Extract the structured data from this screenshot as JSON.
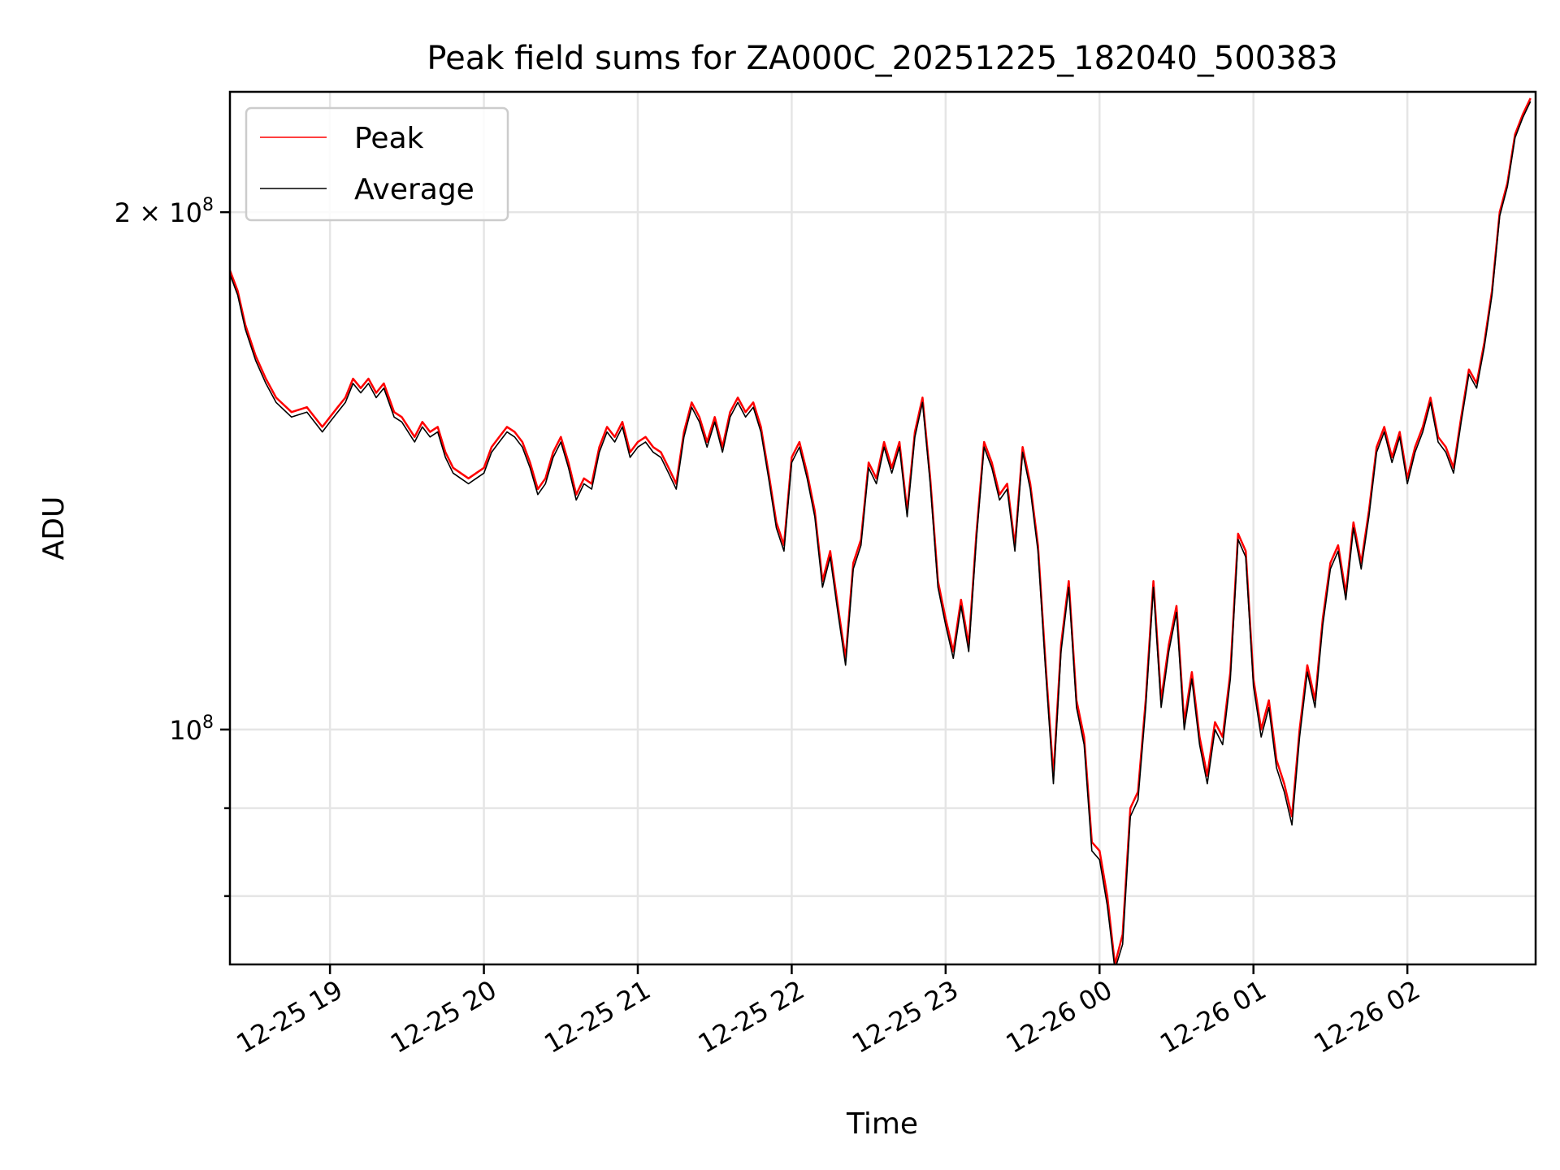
{
  "chart_data": {
    "type": "line",
    "title": "Peak field sums for ZA000C_20251225_182040_500383",
    "xlabel": "Time",
    "ylabel": "ADU",
    "yscale": "log",
    "grid": true,
    "legend_position": "top-left",
    "xlim": [
      "2025-12-25 18:21",
      "2025-12-26 02:50"
    ],
    "ylim": [
      73000000,
      235000000
    ],
    "x_ticks": [
      {
        "value": "2025-12-25 19:00",
        "label": "12-25 19"
      },
      {
        "value": "2025-12-25 20:00",
        "label": "12-25 20"
      },
      {
        "value": "2025-12-25 21:00",
        "label": "12-25 21"
      },
      {
        "value": "2025-12-25 22:00",
        "label": "12-25 22"
      },
      {
        "value": "2025-12-25 23:00",
        "label": "12-25 23"
      },
      {
        "value": "2025-12-26 00:00",
        "label": "12-26 00"
      },
      {
        "value": "2025-12-26 01:00",
        "label": "12-26 01"
      },
      {
        "value": "2025-12-26 02:00",
        "label": "12-26 02"
      }
    ],
    "y_major_ticks": [
      {
        "value": 100000000,
        "base": "10",
        "exp": "8"
      },
      {
        "value": 200000000,
        "mantissa": "2",
        "base": "10",
        "exp": "8"
      }
    ],
    "y_minor_ticks": [
      80000000,
      90000000
    ],
    "series": [
      {
        "name": "Peak",
        "color": "#ff0000",
        "x": [
          "2025-12-25 18:21",
          "2025-12-25 18:24",
          "2025-12-25 18:27",
          "2025-12-25 18:31",
          "2025-12-25 18:35",
          "2025-12-25 18:39",
          "2025-12-25 18:45",
          "2025-12-25 18:51",
          "2025-12-25 18:57",
          "2025-12-25 19:00",
          "2025-12-25 19:03",
          "2025-12-25 19:06",
          "2025-12-25 19:09",
          "2025-12-25 19:12",
          "2025-12-25 19:15",
          "2025-12-25 19:18",
          "2025-12-25 19:21",
          "2025-12-25 19:25",
          "2025-12-25 19:28",
          "2025-12-25 19:33",
          "2025-12-25 19:36",
          "2025-12-25 19:39",
          "2025-12-25 19:42",
          "2025-12-25 19:45",
          "2025-12-25 19:48",
          "2025-12-25 19:51",
          "2025-12-25 19:54",
          "2025-12-25 19:57",
          "2025-12-25 20:00",
          "2025-12-25 20:03",
          "2025-12-25 20:06",
          "2025-12-25 20:09",
          "2025-12-25 20:12",
          "2025-12-25 20:15",
          "2025-12-25 20:18",
          "2025-12-25 20:21",
          "2025-12-25 20:24",
          "2025-12-25 20:27",
          "2025-12-25 20:30",
          "2025-12-25 20:33",
          "2025-12-25 20:36",
          "2025-12-25 20:39",
          "2025-12-25 20:42",
          "2025-12-25 20:45",
          "2025-12-25 20:48",
          "2025-12-25 20:51",
          "2025-12-25 20:54",
          "2025-12-25 20:57",
          "2025-12-25 21:00",
          "2025-12-25 21:03",
          "2025-12-25 21:06",
          "2025-12-25 21:09",
          "2025-12-25 21:12",
          "2025-12-25 21:15",
          "2025-12-25 21:18",
          "2025-12-25 21:21",
          "2025-12-25 21:24",
          "2025-12-25 21:27",
          "2025-12-25 21:30",
          "2025-12-25 21:33",
          "2025-12-25 21:36",
          "2025-12-25 21:39",
          "2025-12-25 21:42",
          "2025-12-25 21:45",
          "2025-12-25 21:48",
          "2025-12-25 21:51",
          "2025-12-25 21:54",
          "2025-12-25 21:57",
          "2025-12-25 22:00",
          "2025-12-25 22:03",
          "2025-12-25 22:06",
          "2025-12-25 22:09",
          "2025-12-25 22:12",
          "2025-12-25 22:15",
          "2025-12-25 22:18",
          "2025-12-25 22:21",
          "2025-12-25 22:24",
          "2025-12-25 22:27",
          "2025-12-25 22:30",
          "2025-12-25 22:33",
          "2025-12-25 22:36",
          "2025-12-25 22:39",
          "2025-12-25 22:42",
          "2025-12-25 22:45",
          "2025-12-25 22:48",
          "2025-12-25 22:51",
          "2025-12-25 22:54",
          "2025-12-25 22:57",
          "2025-12-25 23:00",
          "2025-12-25 23:03",
          "2025-12-25 23:06",
          "2025-12-25 23:09",
          "2025-12-25 23:12",
          "2025-12-25 23:15",
          "2025-12-25 23:18",
          "2025-12-25 23:21",
          "2025-12-25 23:24",
          "2025-12-25 23:27",
          "2025-12-25 23:30",
          "2025-12-25 23:33",
          "2025-12-25 23:36",
          "2025-12-25 23:39",
          "2025-12-25 23:42",
          "2025-12-25 23:45",
          "2025-12-25 23:48",
          "2025-12-25 23:51",
          "2025-12-25 23:54",
          "2025-12-25 23:57",
          "2025-12-26 00:00",
          "2025-12-26 00:03",
          "2025-12-26 00:06",
          "2025-12-26 00:09",
          "2025-12-26 00:12",
          "2025-12-26 00:15",
          "2025-12-26 00:18",
          "2025-12-26 00:21",
          "2025-12-26 00:24",
          "2025-12-26 00:27",
          "2025-12-26 00:30",
          "2025-12-26 00:33",
          "2025-12-26 00:36",
          "2025-12-26 00:39",
          "2025-12-26 00:42",
          "2025-12-26 00:45",
          "2025-12-26 00:48",
          "2025-12-26 00:51",
          "2025-12-26 00:54",
          "2025-12-26 00:57",
          "2025-12-26 01:00",
          "2025-12-26 01:03",
          "2025-12-26 01:06",
          "2025-12-26 01:09",
          "2025-12-26 01:12",
          "2025-12-26 01:15",
          "2025-12-26 01:18",
          "2025-12-26 01:21",
          "2025-12-26 01:24",
          "2025-12-26 01:27",
          "2025-12-26 01:30",
          "2025-12-26 01:33",
          "2025-12-26 01:36",
          "2025-12-26 01:39",
          "2025-12-26 01:42",
          "2025-12-26 01:45",
          "2025-12-26 01:48",
          "2025-12-26 01:51",
          "2025-12-26 01:54",
          "2025-12-26 01:57",
          "2025-12-26 02:00",
          "2025-12-26 02:03",
          "2025-12-26 02:06",
          "2025-12-26 02:09",
          "2025-12-26 02:12",
          "2025-12-26 02:15",
          "2025-12-26 02:18",
          "2025-12-26 02:21",
          "2025-12-26 02:24",
          "2025-12-26 02:27",
          "2025-12-26 02:30",
          "2025-12-26 02:33",
          "2025-12-26 02:36",
          "2025-12-26 02:39",
          "2025-12-26 02:42",
          "2025-12-26 02:45",
          "2025-12-26 02:48"
        ],
        "y": [
          185000000,
          180000000,
          172000000,
          165000000,
          160000000,
          156000000,
          153000000,
          154000000,
          150000000,
          152000000,
          154000000,
          156000000,
          160000000,
          158000000,
          160000000,
          157000000,
          159000000,
          153000000,
          152000000,
          148000000,
          151000000,
          149000000,
          150000000,
          145000000,
          142000000,
          141000000,
          140000000,
          141000000,
          142000000,
          146000000,
          148000000,
          150000000,
          149000000,
          147000000,
          143000000,
          138000000,
          140000000,
          145000000,
          148000000,
          143000000,
          137000000,
          140000000,
          139000000,
          146000000,
          150000000,
          148000000,
          151000000,
          145000000,
          147000000,
          148000000,
          146000000,
          145000000,
          142000000,
          139000000,
          149000000,
          155000000,
          152000000,
          147000000,
          152000000,
          146000000,
          153000000,
          156000000,
          153000000,
          155000000,
          150000000,
          141000000,
          132000000,
          128000000,
          144000000,
          147000000,
          141000000,
          134000000,
          122000000,
          127000000,
          118000000,
          110000000,
          125000000,
          129000000,
          143000000,
          140000000,
          147000000,
          142000000,
          147000000,
          134000000,
          149000000,
          156000000,
          140000000,
          122000000,
          116000000,
          111000000,
          119000000,
          112000000,
          130000000,
          147000000,
          143000000,
          137000000,
          139000000,
          128000000,
          146000000,
          139000000,
          128000000,
          109000000,
          94000000,
          112000000,
          122000000,
          104000000,
          99000000,
          86000000,
          85000000,
          80000000,
          73000000,
          76000000,
          90000000,
          92000000,
          104000000,
          122000000,
          104000000,
          112000000,
          118000000,
          101000000,
          108000000,
          99000000,
          94000000,
          101000000,
          99000000,
          108000000,
          130000000,
          127000000,
          107000000,
          100000000,
          104000000,
          96000000,
          93000000,
          89000000,
          100000000,
          109000000,
          104000000,
          116000000,
          125000000,
          128000000,
          120000000,
          132000000,
          125000000,
          134000000,
          146000000,
          150000000,
          144000000,
          149000000,
          140000000,
          146000000,
          150000000,
          156000000,
          148000000,
          146000000,
          142000000,
          152000000,
          162000000,
          159000000,
          168000000,
          180000000,
          200000000,
          208000000,
          222000000,
          228000000,
          233000000
        ]
      },
      {
        "name": "Average",
        "color": "#000000",
        "x": [
          "2025-12-25 18:21",
          "2025-12-25 18:24",
          "2025-12-25 18:27",
          "2025-12-25 18:31",
          "2025-12-25 18:35",
          "2025-12-25 18:39",
          "2025-12-25 18:45",
          "2025-12-25 18:51",
          "2025-12-25 18:57",
          "2025-12-25 19:00",
          "2025-12-25 19:03",
          "2025-12-25 19:06",
          "2025-12-25 19:09",
          "2025-12-25 19:12",
          "2025-12-25 19:15",
          "2025-12-25 19:18",
          "2025-12-25 19:21",
          "2025-12-25 19:25",
          "2025-12-25 19:28",
          "2025-12-25 19:33",
          "2025-12-25 19:36",
          "2025-12-25 19:39",
          "2025-12-25 19:42",
          "2025-12-25 19:45",
          "2025-12-25 19:48",
          "2025-12-25 19:51",
          "2025-12-25 19:54",
          "2025-12-25 19:57",
          "2025-12-25 20:00",
          "2025-12-25 20:03",
          "2025-12-25 20:06",
          "2025-12-25 20:09",
          "2025-12-25 20:12",
          "2025-12-25 20:15",
          "2025-12-25 20:18",
          "2025-12-25 20:21",
          "2025-12-25 20:24",
          "2025-12-25 20:27",
          "2025-12-25 20:30",
          "2025-12-25 20:33",
          "2025-12-25 20:36",
          "2025-12-25 20:39",
          "2025-12-25 20:42",
          "2025-12-25 20:45",
          "2025-12-25 20:48",
          "2025-12-25 20:51",
          "2025-12-25 20:54",
          "2025-12-25 20:57",
          "2025-12-25 21:00",
          "2025-12-25 21:03",
          "2025-12-25 21:06",
          "2025-12-25 21:09",
          "2025-12-25 21:12",
          "2025-12-25 21:15",
          "2025-12-25 21:18",
          "2025-12-25 21:21",
          "2025-12-25 21:24",
          "2025-12-25 21:27",
          "2025-12-25 21:30",
          "2025-12-25 21:33",
          "2025-12-25 21:36",
          "2025-12-25 21:39",
          "2025-12-25 21:42",
          "2025-12-25 21:45",
          "2025-12-25 21:48",
          "2025-12-25 21:51",
          "2025-12-25 21:54",
          "2025-12-25 21:57",
          "2025-12-25 22:00",
          "2025-12-25 22:03",
          "2025-12-25 22:06",
          "2025-12-25 22:09",
          "2025-12-25 22:12",
          "2025-12-25 22:15",
          "2025-12-25 22:18",
          "2025-12-25 22:21",
          "2025-12-25 22:24",
          "2025-12-25 22:27",
          "2025-12-25 22:30",
          "2025-12-25 22:33",
          "2025-12-25 22:36",
          "2025-12-25 22:39",
          "2025-12-25 22:42",
          "2025-12-25 22:45",
          "2025-12-25 22:48",
          "2025-12-25 22:51",
          "2025-12-25 22:54",
          "2025-12-25 22:57",
          "2025-12-25 23:00",
          "2025-12-25 23:03",
          "2025-12-25 23:06",
          "2025-12-25 23:09",
          "2025-12-25 23:12",
          "2025-12-25 23:15",
          "2025-12-25 23:18",
          "2025-12-25 23:21",
          "2025-12-25 23:24",
          "2025-12-25 23:27",
          "2025-12-25 23:30",
          "2025-12-25 23:33",
          "2025-12-25 23:36",
          "2025-12-25 23:39",
          "2025-12-25 23:42",
          "2025-12-25 23:45",
          "2025-12-25 23:48",
          "2025-12-25 23:51",
          "2025-12-25 23:54",
          "2025-12-25 23:57",
          "2025-12-26 00:00",
          "2025-12-26 00:03",
          "2025-12-26 00:06",
          "2025-12-26 00:09",
          "2025-12-26 00:12",
          "2025-12-26 00:15",
          "2025-12-26 00:18",
          "2025-12-26 00:21",
          "2025-12-26 00:24",
          "2025-12-26 00:27",
          "2025-12-26 00:30",
          "2025-12-26 00:33",
          "2025-12-26 00:36",
          "2025-12-26 00:39",
          "2025-12-26 00:42",
          "2025-12-26 00:45",
          "2025-12-26 00:48",
          "2025-12-26 00:51",
          "2025-12-26 00:54",
          "2025-12-26 00:57",
          "2025-12-26 01:00",
          "2025-12-26 01:03",
          "2025-12-26 01:06",
          "2025-12-26 01:09",
          "2025-12-26 01:12",
          "2025-12-26 01:15",
          "2025-12-26 01:18",
          "2025-12-26 01:21",
          "2025-12-26 01:24",
          "2025-12-26 01:27",
          "2025-12-26 01:30",
          "2025-12-26 01:33",
          "2025-12-26 01:36",
          "2025-12-26 01:39",
          "2025-12-26 01:42",
          "2025-12-26 01:45",
          "2025-12-26 01:48",
          "2025-12-26 01:51",
          "2025-12-26 01:54",
          "2025-12-26 01:57",
          "2025-12-26 02:00",
          "2025-12-26 02:03",
          "2025-12-26 02:06",
          "2025-12-26 02:09",
          "2025-12-26 02:12",
          "2025-12-26 02:15",
          "2025-12-26 02:18",
          "2025-12-26 02:21",
          "2025-12-26 02:24",
          "2025-12-26 02:27",
          "2025-12-26 02:30",
          "2025-12-26 02:33",
          "2025-12-26 02:36",
          "2025-12-26 02:39",
          "2025-12-26 02:42",
          "2025-12-26 02:45",
          "2025-12-26 02:48"
        ],
        "y": [
          184000000,
          179000000,
          171000000,
          164000000,
          159000000,
          155000000,
          152000000,
          153000000,
          149000000,
          151000000,
          153000000,
          155000000,
          159000000,
          157000000,
          159000000,
          156000000,
          158000000,
          152000000,
          151000000,
          147000000,
          150000000,
          148000000,
          149000000,
          144000000,
          141000000,
          140000000,
          139000000,
          140000000,
          141000000,
          145000000,
          147000000,
          149000000,
          148000000,
          146000000,
          142000000,
          137000000,
          139000000,
          144000000,
          147000000,
          142000000,
          136000000,
          139000000,
          138000000,
          145000000,
          149000000,
          147000000,
          150000000,
          144000000,
          146000000,
          147000000,
          145000000,
          144000000,
          141000000,
          138000000,
          148000000,
          154000000,
          151000000,
          146000000,
          151000000,
          145000000,
          152000000,
          155000000,
          152000000,
          154000000,
          149000000,
          140000000,
          131000000,
          127000000,
          143000000,
          146000000,
          140000000,
          133000000,
          121000000,
          126000000,
          117000000,
          109000000,
          124000000,
          128000000,
          142000000,
          139000000,
          146000000,
          141000000,
          146000000,
          133000000,
          148000000,
          155000000,
          139000000,
          121000000,
          115000000,
          110000000,
          118000000,
          111000000,
          129000000,
          146000000,
          142000000,
          136000000,
          138000000,
          127000000,
          145000000,
          138000000,
          127000000,
          108000000,
          93000000,
          111000000,
          121000000,
          103000000,
          98000000,
          85000000,
          84000000,
          79000000,
          72500000,
          75000000,
          89000000,
          91000000,
          103000000,
          121000000,
          103000000,
          111000000,
          117000000,
          100000000,
          107000000,
          98000000,
          93000000,
          100000000,
          98000000,
          107000000,
          129000000,
          126000000,
          106000000,
          99000000,
          103000000,
          95000000,
          92000000,
          88000000,
          99000000,
          108000000,
          103000000,
          115000000,
          124000000,
          127000000,
          119000000,
          131000000,
          124000000,
          133000000,
          145000000,
          149000000,
          143000000,
          148000000,
          139000000,
          145000000,
          149000000,
          155000000,
          147000000,
          145000000,
          141000000,
          151000000,
          161000000,
          158000000,
          167000000,
          179000000,
          199000000,
          207000000,
          221000000,
          227000000,
          232000000
        ]
      }
    ]
  }
}
